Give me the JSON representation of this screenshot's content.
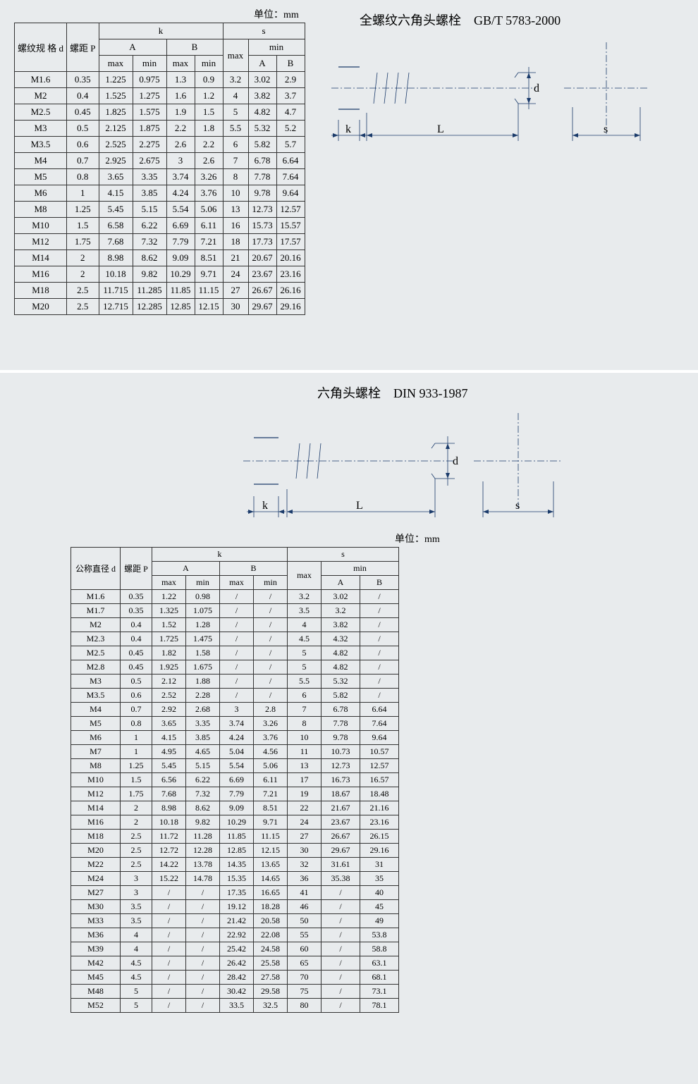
{
  "colors": {
    "background": "#e8ebed",
    "border": "#333333",
    "line": "#1a3a6a",
    "text": "#000000"
  },
  "fonts": {
    "body": "SimSun, serif",
    "table_fontsize_pt": 11,
    "title_fontsize_pt": 14
  },
  "section1": {
    "unit_label": "单位：mm",
    "title": "全螺纹六角头螺栓　GB/T 5783-2000",
    "diagram_labels": {
      "k": "k",
      "L": "L",
      "d": "d",
      "s": "s"
    },
    "table": {
      "header": {
        "col_d": "螺纹规\n格\nd",
        "col_p": "螺距\nP",
        "group_k": "k",
        "group_s": "s",
        "sub_A": "A",
        "sub_B": "B",
        "sub_max": "max",
        "sub_min": "min"
      },
      "rows": [
        [
          "M1.6",
          "0.35",
          "1.225",
          "0.975",
          "1.3",
          "0.9",
          "3.2",
          "3.02",
          "2.9"
        ],
        [
          "M2",
          "0.4",
          "1.525",
          "1.275",
          "1.6",
          "1.2",
          "4",
          "3.82",
          "3.7"
        ],
        [
          "M2.5",
          "0.45",
          "1.825",
          "1.575",
          "1.9",
          "1.5",
          "5",
          "4.82",
          "4.7"
        ],
        [
          "M3",
          "0.5",
          "2.125",
          "1.875",
          "2.2",
          "1.8",
          "5.5",
          "5.32",
          "5.2"
        ],
        [
          "M3.5",
          "0.6",
          "2.525",
          "2.275",
          "2.6",
          "2.2",
          "6",
          "5.82",
          "5.7"
        ],
        [
          "M4",
          "0.7",
          "2.925",
          "2.675",
          "3",
          "2.6",
          "7",
          "6.78",
          "6.64"
        ],
        [
          "M5",
          "0.8",
          "3.65",
          "3.35",
          "3.74",
          "3.26",
          "8",
          "7.78",
          "7.64"
        ],
        [
          "M6",
          "1",
          "4.15",
          "3.85",
          "4.24",
          "3.76",
          "10",
          "9.78",
          "9.64"
        ],
        [
          "M8",
          "1.25",
          "5.45",
          "5.15",
          "5.54",
          "5.06",
          "13",
          "12.73",
          "12.57"
        ],
        [
          "M10",
          "1.5",
          "6.58",
          "6.22",
          "6.69",
          "6.11",
          "16",
          "15.73",
          "15.57"
        ],
        [
          "M12",
          "1.75",
          "7.68",
          "7.32",
          "7.79",
          "7.21",
          "18",
          "17.73",
          "17.57"
        ],
        [
          "M14",
          "2",
          "8.98",
          "8.62",
          "9.09",
          "8.51",
          "21",
          "20.67",
          "20.16"
        ],
        [
          "M16",
          "2",
          "10.18",
          "9.82",
          "10.29",
          "9.71",
          "24",
          "23.67",
          "23.16"
        ],
        [
          "M18",
          "2.5",
          "11.715",
          "11.285",
          "11.85",
          "11.15",
          "27",
          "26.67",
          "26.16"
        ],
        [
          "M20",
          "2.5",
          "12.715",
          "12.285",
          "12.85",
          "12.15",
          "30",
          "29.67",
          "29.16"
        ]
      ]
    }
  },
  "section2": {
    "title": "六角头螺栓　DIN 933-1987",
    "unit_label": "单位：mm",
    "diagram_labels": {
      "k": "k",
      "L": "L",
      "d": "d",
      "s": "s"
    },
    "table": {
      "header": {
        "col_d": "公称直径\nd",
        "col_p": "螺距\nP",
        "group_k": "k",
        "group_s": "s",
        "sub_A": "A",
        "sub_B": "B",
        "sub_max": "max",
        "sub_min": "min"
      },
      "rows": [
        [
          "M1.6",
          "0.35",
          "1.22",
          "0.98",
          "/",
          "/",
          "3.2",
          "3.02",
          "/"
        ],
        [
          "M1.7",
          "0.35",
          "1.325",
          "1.075",
          "/",
          "/",
          "3.5",
          "3.2",
          "/"
        ],
        [
          "M2",
          "0.4",
          "1.52",
          "1.28",
          "/",
          "/",
          "4",
          "3.82",
          "/"
        ],
        [
          "M2.3",
          "0.4",
          "1.725",
          "1.475",
          "/",
          "/",
          "4.5",
          "4.32",
          "/"
        ],
        [
          "M2.5",
          "0.45",
          "1.82",
          "1.58",
          "/",
          "/",
          "5",
          "4.82",
          "/"
        ],
        [
          "M2.8",
          "0.45",
          "1.925",
          "1.675",
          "/",
          "/",
          "5",
          "4.82",
          "/"
        ],
        [
          "M3",
          "0.5",
          "2.12",
          "1.88",
          "/",
          "/",
          "5.5",
          "5.32",
          "/"
        ],
        [
          "M3.5",
          "0.6",
          "2.52",
          "2.28",
          "/",
          "/",
          "6",
          "5.82",
          "/"
        ],
        [
          "M4",
          "0.7",
          "2.92",
          "2.68",
          "3",
          "2.8",
          "7",
          "6.78",
          "6.64"
        ],
        [
          "M5",
          "0.8",
          "3.65",
          "3.35",
          "3.74",
          "3.26",
          "8",
          "7.78",
          "7.64"
        ],
        [
          "M6",
          "1",
          "4.15",
          "3.85",
          "4.24",
          "3.76",
          "10",
          "9.78",
          "9.64"
        ],
        [
          "M7",
          "1",
          "4.95",
          "4.65",
          "5.04",
          "4.56",
          "11",
          "10.73",
          "10.57"
        ],
        [
          "M8",
          "1.25",
          "5.45",
          "5.15",
          "5.54",
          "5.06",
          "13",
          "12.73",
          "12.57"
        ],
        [
          "M10",
          "1.5",
          "6.56",
          "6.22",
          "6.69",
          "6.11",
          "17",
          "16.73",
          "16.57"
        ],
        [
          "M12",
          "1.75",
          "7.68",
          "7.32",
          "7.79",
          "7.21",
          "19",
          "18.67",
          "18.48"
        ],
        [
          "M14",
          "2",
          "8.98",
          "8.62",
          "9.09",
          "8.51",
          "22",
          "21.67",
          "21.16"
        ],
        [
          "M16",
          "2",
          "10.18",
          "9.82",
          "10.29",
          "9.71",
          "24",
          "23.67",
          "23.16"
        ],
        [
          "M18",
          "2.5",
          "11.72",
          "11.28",
          "11.85",
          "11.15",
          "27",
          "26.67",
          "26.15"
        ],
        [
          "M20",
          "2.5",
          "12.72",
          "12.28",
          "12.85",
          "12.15",
          "30",
          "29.67",
          "29.16"
        ],
        [
          "M22",
          "2.5",
          "14.22",
          "13.78",
          "14.35",
          "13.65",
          "32",
          "31.61",
          "31"
        ],
        [
          "M24",
          "3",
          "15.22",
          "14.78",
          "15.35",
          "14.65",
          "36",
          "35.38",
          "35"
        ],
        [
          "M27",
          "3",
          "/",
          "/",
          "17.35",
          "16.65",
          "41",
          "/",
          "40"
        ],
        [
          "M30",
          "3.5",
          "/",
          "/",
          "19.12",
          "18.28",
          "46",
          "/",
          "45"
        ],
        [
          "M33",
          "3.5",
          "/",
          "/",
          "21.42",
          "20.58",
          "50",
          "/",
          "49"
        ],
        [
          "M36",
          "4",
          "/",
          "/",
          "22.92",
          "22.08",
          "55",
          "/",
          "53.8"
        ],
        [
          "M39",
          "4",
          "/",
          "/",
          "25.42",
          "24.58",
          "60",
          "/",
          "58.8"
        ],
        [
          "M42",
          "4.5",
          "/",
          "/",
          "26.42",
          "25.58",
          "65",
          "/",
          "63.1"
        ],
        [
          "M45",
          "4.5",
          "/",
          "/",
          "28.42",
          "27.58",
          "70",
          "/",
          "68.1"
        ],
        [
          "M48",
          "5",
          "/",
          "/",
          "30.42",
          "29.58",
          "75",
          "/",
          "73.1"
        ],
        [
          "M52",
          "5",
          "/",
          "/",
          "33.5",
          "32.5",
          "80",
          "/",
          "78.1"
        ]
      ]
    }
  }
}
